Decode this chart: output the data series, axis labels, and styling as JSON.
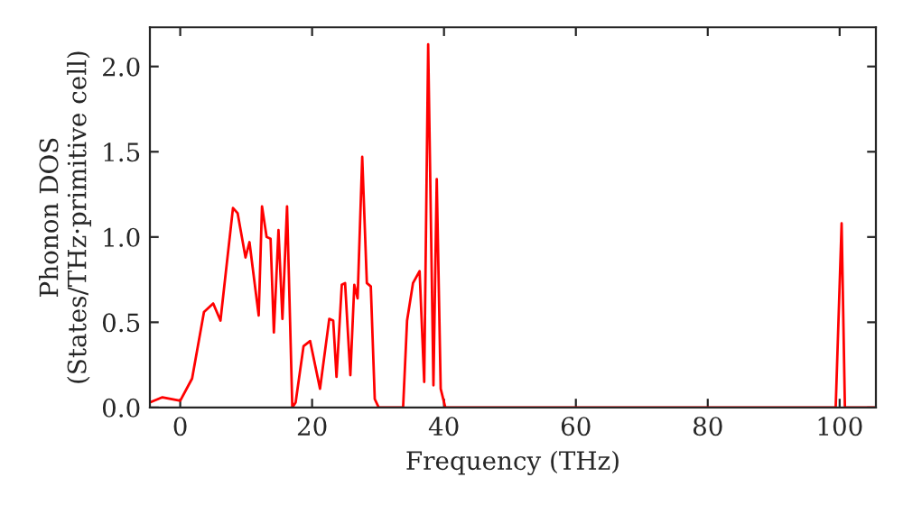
{
  "chart_data": {
    "type": "line",
    "xlabel": "Frequency (THz)",
    "ylabel": "Phonon DOS\n(States/THz·primitive cell)",
    "series": [
      {
        "color": "#ff0000",
        "x": [
          -4.6,
          -2.7,
          0,
          1.8,
          3.6,
          5.0,
          6.1,
          8.0,
          8.7,
          9.9,
          10.5,
          11.9,
          12.4,
          13.1,
          13.7,
          14.2,
          14.9,
          15.5,
          16.2,
          17.0,
          17.5,
          18.7,
          19.7,
          21.2,
          22.6,
          23.2,
          23.7,
          24.5,
          25.0,
          25.8,
          26.4,
          26.9,
          27.6,
          28.3,
          28.9,
          29.5,
          30.1,
          33.8,
          34.4,
          35.3,
          36.3,
          37.0,
          37.6,
          38.4,
          38.9,
          39.5,
          40.2,
          99.4,
          100.3,
          100.8,
          105.5
        ],
        "values": [
          0.03,
          0.06,
          0.04,
          0.17,
          0.56,
          0.61,
          0.51,
          1.17,
          1.14,
          0.88,
          0.97,
          0.54,
          1.18,
          1.0,
          0.99,
          0.44,
          1.04,
          0.52,
          1.18,
          0,
          0.03,
          0.36,
          0.39,
          0.11,
          0.52,
          0.51,
          0.18,
          0.72,
          0.73,
          0.19,
          0.72,
          0.64,
          1.47,
          0.73,
          0.71,
          0.05,
          0,
          0,
          0.51,
          0.73,
          0.8,
          0.15,
          2.13,
          0.13,
          1.34,
          0.11,
          0,
          0,
          1.08,
          0,
          0
        ]
      }
    ],
    "xlim": [
      -4.6,
      105.5
    ],
    "ylim": [
      0,
      2.23
    ],
    "xticks": [
      0,
      20,
      40,
      60,
      80,
      100
    ],
    "yticks": [
      {
        "value": 0,
        "label": "0.0"
      },
      {
        "value": 0.5,
        "label": "0.5"
      },
      {
        "value": 1.0,
        "label": "1.0"
      },
      {
        "value": 1.5,
        "label": "1.5"
      },
      {
        "value": 2.0,
        "label": "2.0"
      }
    ],
    "grid": false,
    "legend": false
  }
}
